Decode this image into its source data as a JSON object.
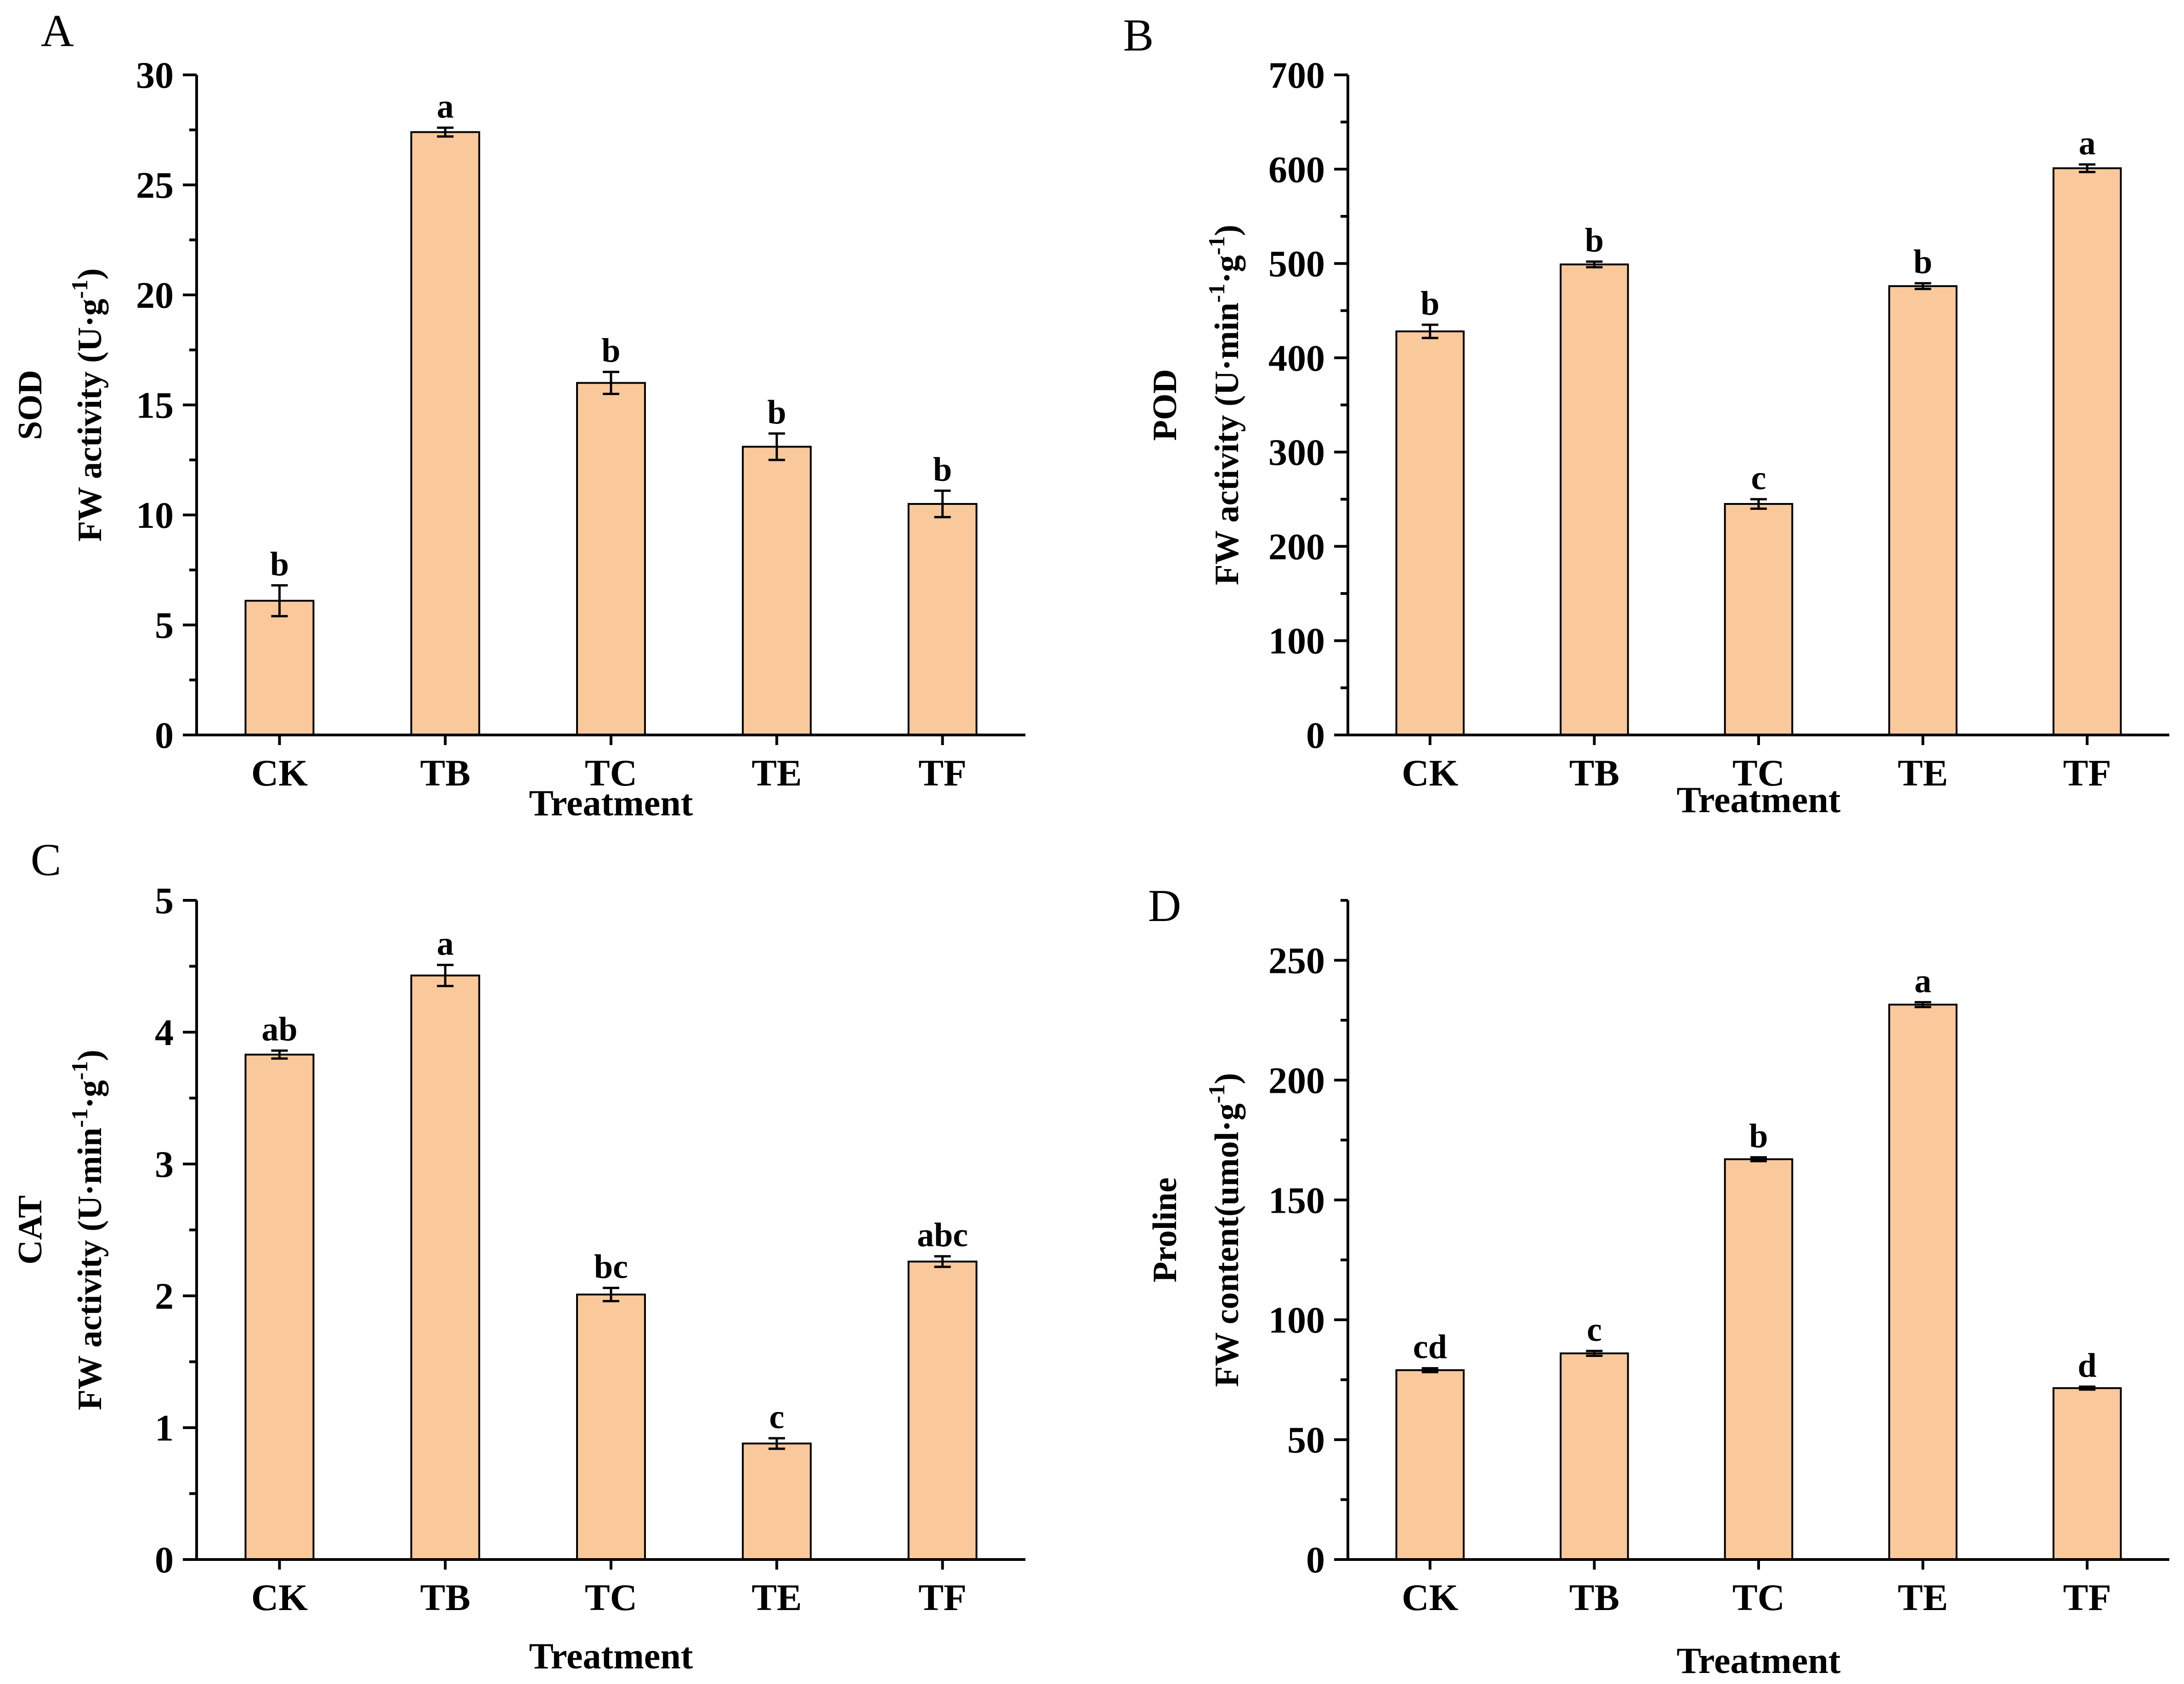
{
  "chart_data": [
    {
      "type": "bar",
      "panel": "A",
      "title": "",
      "categories": [
        "CK",
        "TB",
        "TC",
        "TE",
        "TF"
      ],
      "values": [
        6.1,
        27.4,
        16.0,
        13.1,
        10.5
      ],
      "errors": [
        0.7,
        0.2,
        0.5,
        0.6,
        0.6
      ],
      "significance": [
        "b",
        "a",
        "b",
        "b",
        "b"
      ],
      "xlabel": "Treatment",
      "ylabel_line1": "SOD",
      "ylabel_line2": "FW activity (U·g",
      "ylabel_sup": "-1",
      "ylabel_close": ")",
      "ylim": [
        0,
        30
      ],
      "yticks": [
        0,
        5,
        10,
        15,
        20,
        25,
        30
      ],
      "bar_color": "#F9C89B"
    },
    {
      "type": "bar",
      "panel": "B",
      "title": "",
      "categories": [
        "CK",
        "TB",
        "TC",
        "TE",
        "TF"
      ],
      "values": [
        428,
        499,
        245,
        476,
        601
      ],
      "errors": [
        7,
        3,
        5,
        3,
        4
      ],
      "significance": [
        "b",
        "b",
        "c",
        "b",
        "a"
      ],
      "xlabel": "Treatment",
      "ylabel_line1": "POD",
      "ylabel_line2": "FW activity (U·min",
      "ylabel_sup": "-1",
      "ylabel_mid": "·g",
      "ylabel_sup2": "-1",
      "ylabel_close": ")",
      "ylim": [
        0,
        700
      ],
      "yticks": [
        0,
        100,
        200,
        300,
        400,
        500,
        600,
        700
      ],
      "bar_color": "#F9C89B"
    },
    {
      "type": "bar",
      "panel": "C",
      "title": "",
      "categories": [
        "CK",
        "TB",
        "TC",
        "TE",
        "TF"
      ],
      "values": [
        3.83,
        4.43,
        2.01,
        0.88,
        2.26
      ],
      "errors": [
        0.03,
        0.08,
        0.05,
        0.04,
        0.04
      ],
      "significance": [
        "ab",
        "a",
        "bc",
        "c",
        "abc"
      ],
      "xlabel": "Treatment",
      "ylabel_line1": "CAT",
      "ylabel_line2": "FW activity (U·min",
      "ylabel_sup": "-1",
      "ylabel_mid": "·g",
      "ylabel_sup2": "-1",
      "ylabel_close": ")",
      "ylim": [
        0,
        5
      ],
      "yticks": [
        0,
        1,
        2,
        3,
        4,
        5
      ],
      "bar_color": "#F9C89B"
    },
    {
      "type": "bar",
      "panel": "D",
      "title": "",
      "categories": [
        "CK",
        "TB",
        "TC",
        "TE",
        "TF"
      ],
      "values": [
        79,
        86,
        167,
        231.5,
        71.5
      ],
      "errors": [
        0.8,
        1.0,
        0.8,
        1.0,
        0.6
      ],
      "significance": [
        "cd",
        "c",
        "b",
        "a",
        "d"
      ],
      "xlabel": "Treatment",
      "ylabel_line1": "Proline",
      "ylabel_line2": "FW content(umol·g",
      "ylabel_sup": "-1",
      "ylabel_close": ")",
      "ylim": [
        0,
        275
      ],
      "yticks": [
        0,
        50,
        100,
        150,
        200,
        250
      ],
      "bar_color": "#F9C89B"
    }
  ]
}
